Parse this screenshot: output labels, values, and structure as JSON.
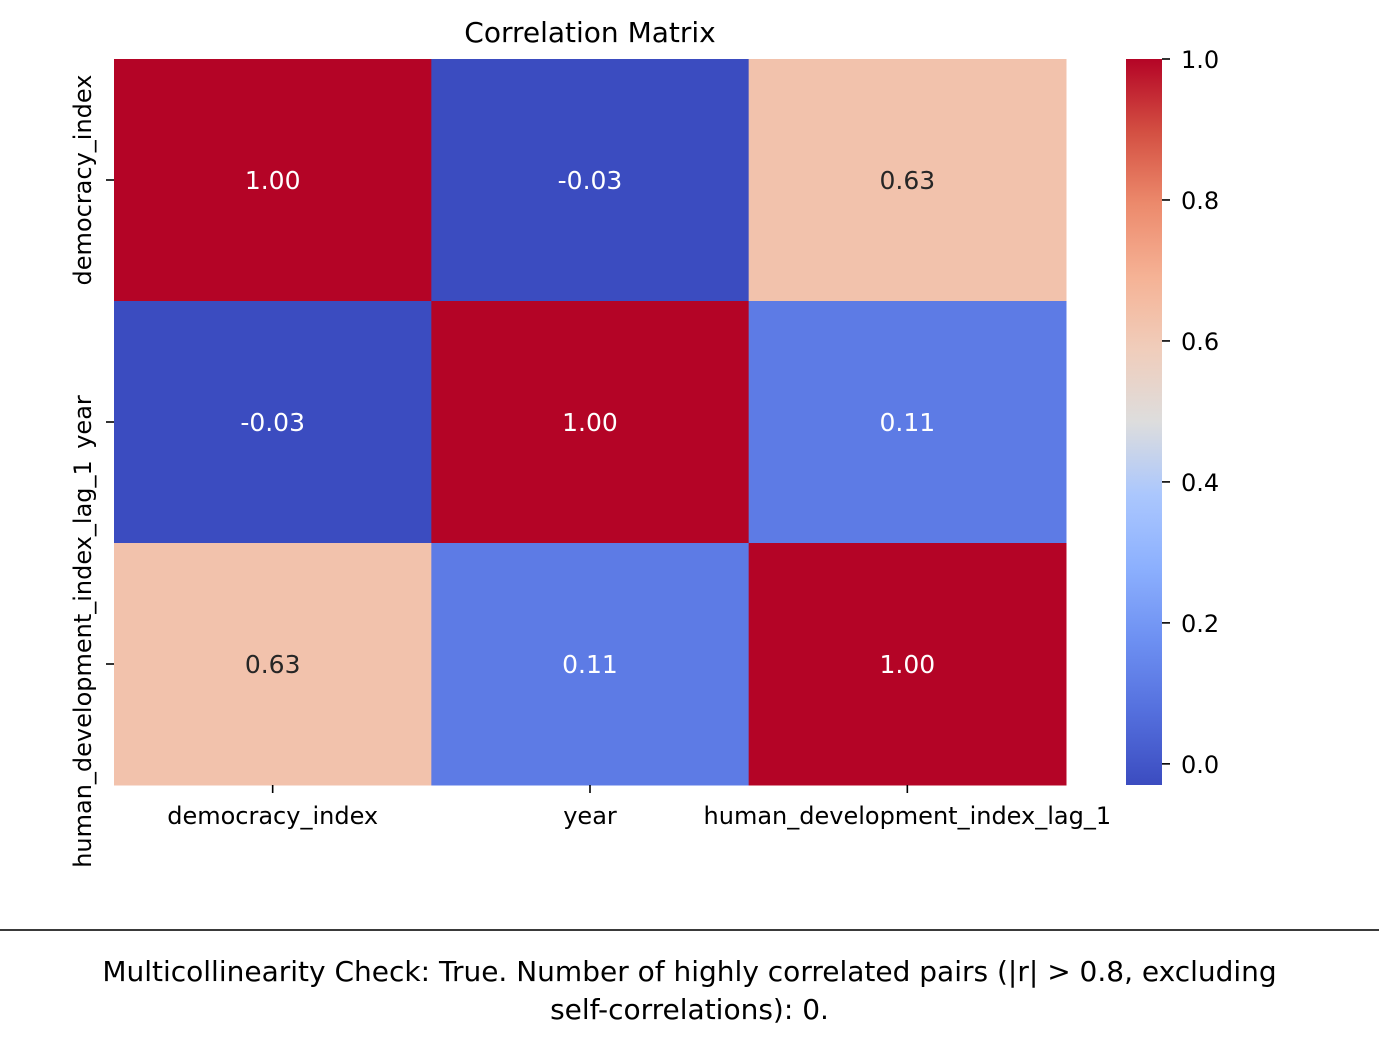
{
  "chart_data": {
    "type": "heatmap",
    "title": "Correlation Matrix",
    "row_labels": [
      "democracy_index",
      "year",
      "human_development_index_lag_1"
    ],
    "col_labels": [
      "democracy_index",
      "year",
      "human_development_index_lag_1"
    ],
    "values": [
      [
        1.0,
        -0.03,
        0.63
      ],
      [
        -0.03,
        1.0,
        0.11
      ],
      [
        0.63,
        0.11,
        1.0
      ]
    ],
    "cell_labels": [
      [
        "1.00",
        "-0.03",
        "0.63"
      ],
      [
        "-0.03",
        "1.00",
        "0.11"
      ],
      [
        "0.63",
        "0.11",
        "1.00"
      ]
    ],
    "colormap": "coolwarm",
    "vmin": -0.03,
    "vmax": 1.0,
    "colorbar_ticks": [
      "0.0",
      "0.2",
      "0.4",
      "0.6",
      "0.8",
      "1.0"
    ],
    "colorbar_tick_values": [
      0.0,
      0.2,
      0.4,
      0.6,
      0.8,
      1.0
    ],
    "colors": {
      "high": "#b40426",
      "low": "#3b4cc0",
      "mid": "#dddddd"
    }
  },
  "caption": {
    "line1": "Multicollinearity Check: True. Number of highly correlated pairs (|r| > 0.8, excluding",
    "line2": "self-correlations): 0."
  }
}
